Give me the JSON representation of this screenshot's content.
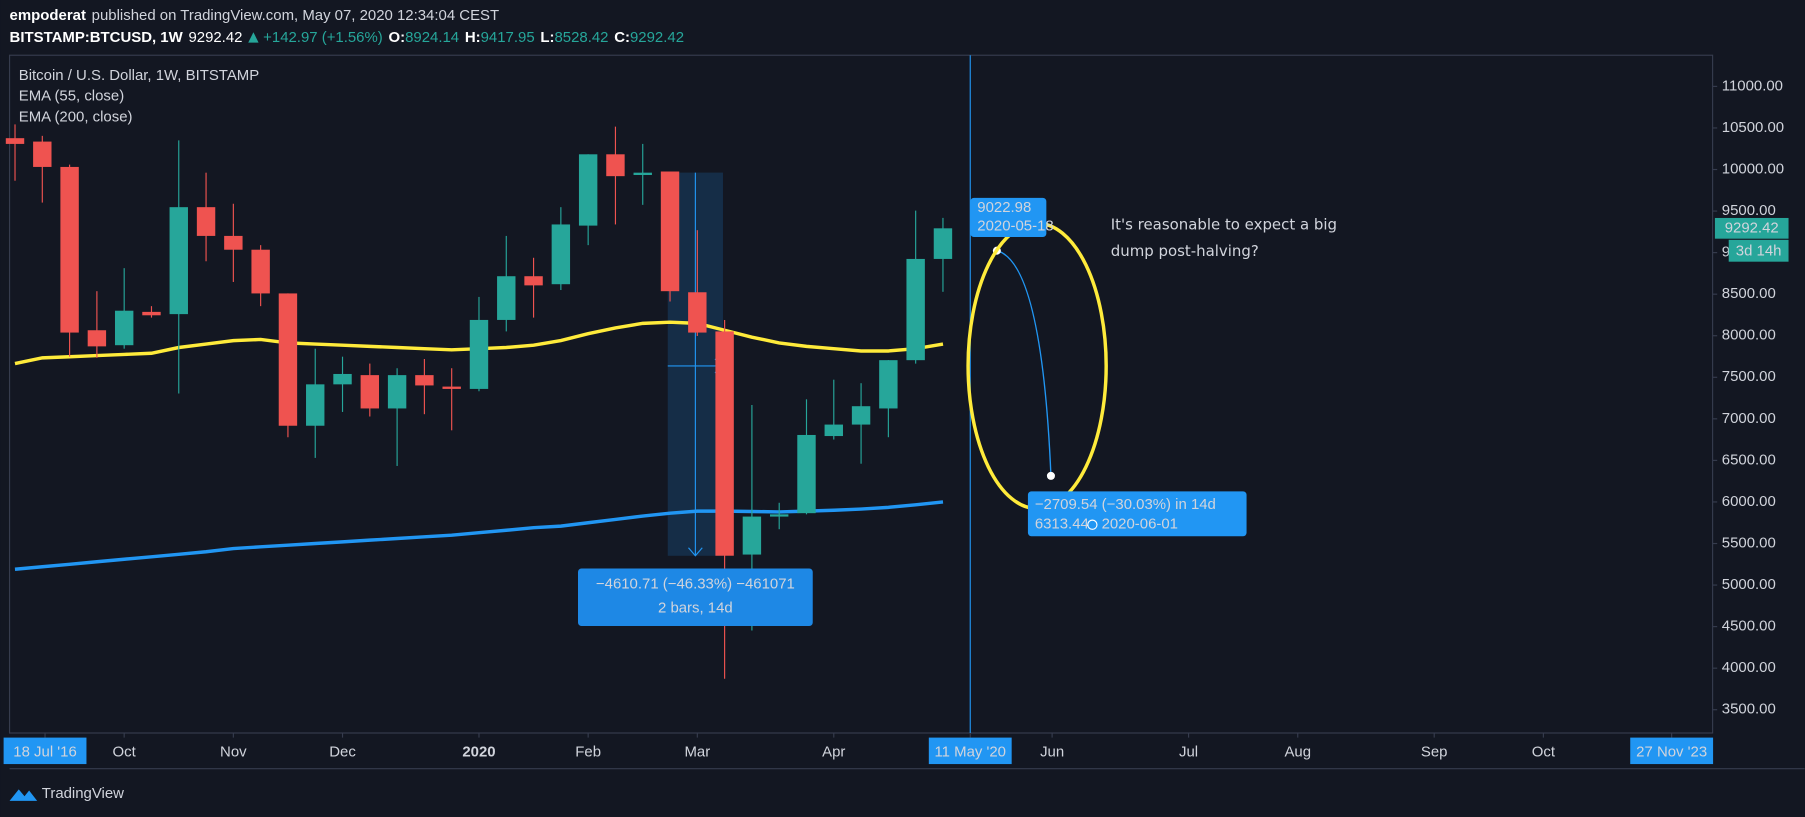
{
  "header": {
    "user": "empoderat",
    "published": "published on TradingView.com, May 07, 2020 12:34:04 CEST",
    "symbol": "BITSTAMP:BTCUSD, 1W",
    "change": "+142.97 (+1.56%)",
    "o_label": "O:",
    "h_label": "H:",
    "l_label": "L:",
    "c_label": "C:"
  },
  "footer": {
    "brand": "TradingView"
  },
  "chart_data": {
    "type": "candlestick",
    "title": "Bitcoin / U.S. Dollar, 1W, BITSTAMP",
    "x": [
      0,
      1,
      2,
      3,
      4,
      5,
      6,
      7,
      8,
      9,
      10,
      11,
      12,
      13,
      14,
      15,
      16,
      17,
      18,
      19,
      20,
      21,
      22,
      23,
      24,
      25,
      26,
      27,
      28,
      29,
      30,
      31,
      32,
      33,
      34
    ],
    "open": [
      10377,
      10336,
      10031,
      8066,
      7886,
      8287,
      8260,
      9547,
      9201,
      9035,
      8509,
      6917,
      7415,
      7526,
      7125,
      7526,
      7388,
      7360,
      8190,
      8716,
      8620,
      9325,
      10183,
      9934,
      9976,
      8523,
      8052,
      5367,
      5824,
      5865,
      6793,
      6931,
      7125,
      7706,
      8924.14
    ],
    "high": [
      10543,
      10405,
      10059,
      8536,
      8813,
      8356,
      10350,
      9962,
      9588,
      9090,
      8509,
      7844,
      7748,
      7665,
      7609,
      7720,
      7609,
      8467,
      9201,
      8938,
      9547,
      10183,
      10516,
      10308,
      9976,
      9270,
      8190,
      7166,
      5990,
      7235,
      7471,
      7429,
      7707,
      9505,
      9417.95
    ],
    "low": [
      9865,
      9602,
      7748,
      7734,
      7844,
      8218,
      7305,
      8896,
      8647,
      8356,
      6779,
      6530,
      7083,
      7028,
      6433,
      7056,
      6862,
      7332,
      8052,
      8218,
      8550,
      9090,
      9339,
      9575,
      8412,
      7997,
      3873,
      4454,
      5672,
      5851,
      6751,
      6460,
      6779,
      7665,
      8528.42
    ],
    "close": [
      10308,
      10031,
      8038,
      7872,
      8301,
      8246,
      9547,
      9201,
      9035,
      8509,
      6917,
      7415,
      7540,
      7125,
      7526,
      7402,
      7360,
      8190,
      8716,
      8606,
      9339,
      10183,
      9920,
      9962,
      8536,
      8038,
      5353,
      5824,
      5851,
      6806,
      6931,
      7152,
      7706,
      8924,
      9292.42
    ],
    "up_color": "#26a69a",
    "down_color": "#ef5350",
    "series": [
      {
        "name": "EMA (55, close)",
        "color": "#ffeb3b",
        "values": [
          7665,
          7734,
          7748,
          7761,
          7775,
          7789,
          7858,
          7900,
          7941,
          7955,
          7914,
          7900,
          7886,
          7872,
          7858,
          7844,
          7831,
          7844,
          7858,
          7886,
          7941,
          8024,
          8094,
          8149,
          8163,
          8149,
          8066,
          7983,
          7914,
          7872,
          7844,
          7817,
          7817,
          7844,
          7900
        ]
      },
      {
        "name": "EMA (200, close)",
        "color": "#2196f3",
        "values": [
          5190,
          5220,
          5250,
          5280,
          5310,
          5340,
          5370,
          5400,
          5440,
          5460,
          5480,
          5500,
          5520,
          5540,
          5560,
          5580,
          5600,
          5630,
          5660,
          5690,
          5710,
          5750,
          5790,
          5830,
          5865,
          5890,
          5890,
          5885,
          5880,
          5890,
          5900,
          5915,
          5935,
          5965,
          6000
        ]
      }
    ],
    "xlim": [
      -0.2,
      62.2
    ],
    "xticks": [
      {
        "value": 1.1,
        "label": "18 Jul '16",
        "boxed": true
      },
      {
        "value": 4,
        "label": "Oct"
      },
      {
        "value": 8,
        "label": "Nov"
      },
      {
        "value": 12,
        "label": "Dec"
      },
      {
        "value": 17,
        "label": "2020",
        "bold": true
      },
      {
        "value": 21,
        "label": "Feb"
      },
      {
        "value": 25,
        "label": "Mar"
      },
      {
        "value": 30,
        "label": "Apr"
      },
      {
        "value": 35,
        "label": "11 May '20",
        "boxed": true
      },
      {
        "value": 38,
        "label": "Jun"
      },
      {
        "value": 43,
        "label": "Jul"
      },
      {
        "value": 47,
        "label": "Aug"
      },
      {
        "value": 52,
        "label": "Sep"
      },
      {
        "value": 56,
        "label": "Oct"
      },
      {
        "value": 60.7,
        "label": "27 Nov '23",
        "boxed": true
      }
    ],
    "ylim": [
      3220,
      11375
    ],
    "yticks": [
      {
        "value": 3500,
        "label": "3500.00"
      },
      {
        "value": 4000,
        "label": "4000.00"
      },
      {
        "value": 4500,
        "label": "4500.00"
      },
      {
        "value": 5000,
        "label": "5000.00"
      },
      {
        "value": 5500,
        "label": "5500.00"
      },
      {
        "value": 6000,
        "label": "6000.00"
      },
      {
        "value": 6500,
        "label": "6500.00"
      },
      {
        "value": 7000,
        "label": "7000.00"
      },
      {
        "value": 7500,
        "label": "7500.00"
      },
      {
        "value": 8000,
        "label": "8000.00"
      },
      {
        "value": 8500,
        "label": "8500.00"
      },
      {
        "value": 9000,
        "label": "9000.00"
      },
      {
        "value": 9500,
        "label": "9500.00"
      },
      {
        "value": 10000,
        "label": "10000.00"
      },
      {
        "value": 10500,
        "label": "10500.00"
      },
      {
        "value": 11000,
        "label": "11000.00"
      }
    ],
    "grid": false,
    "countdown": "3d 14h",
    "annotations": {
      "measure": {
        "line1": "−4610.71 (−46.33%) −461071",
        "line2": "2 bars, 14d"
      },
      "projection": {
        "start_value": 9022.98,
        "start_date": "2020-05-18",
        "change": "−2709.54 (−30.03%) in 14d",
        "end_value": 6313.44,
        "end_date": "2020-06-01"
      },
      "note": [
        "It's reasonable to expect a big",
        "dump post-halving?"
      ]
    }
  }
}
